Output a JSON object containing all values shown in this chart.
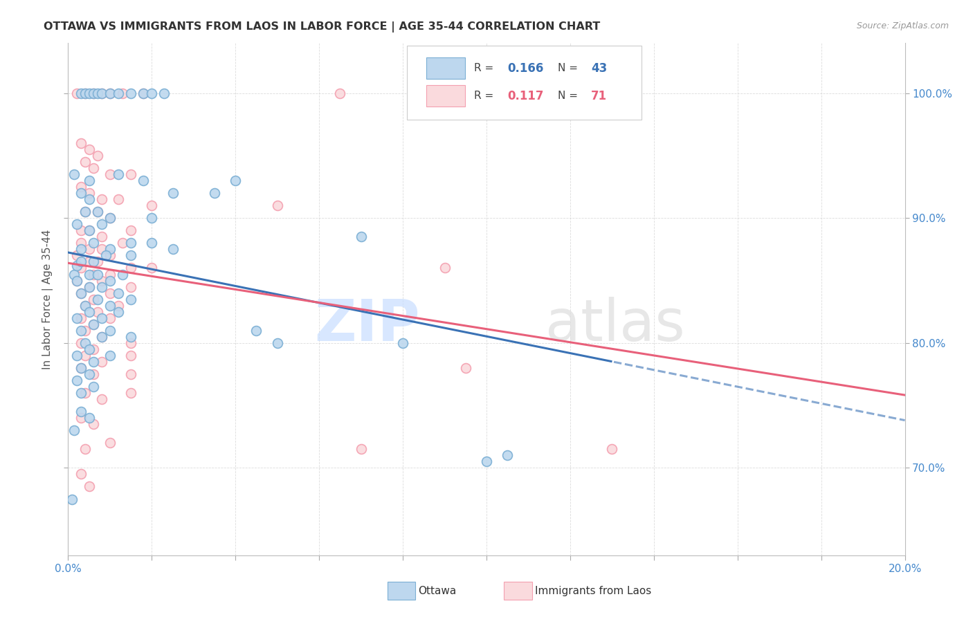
{
  "title": "OTTAWA VS IMMIGRANTS FROM LAOS IN LABOR FORCE | AGE 35-44 CORRELATION CHART",
  "source": "Source: ZipAtlas.com",
  "ylabel": "In Labor Force | Age 35-44",
  "ylabel_ticks": [
    70.0,
    80.0,
    90.0,
    100.0
  ],
  "xmin": 0.0,
  "xmax": 20.0,
  "ymin": 63.0,
  "ymax": 104.0,
  "blue_color": "#7BAFD4",
  "pink_color": "#F4A0B0",
  "blue_fill": "#BDD7EE",
  "pink_fill": "#FADADD",
  "trend_blue": "#3A72B5",
  "trend_pink": "#E8607A",
  "ottawa_points": [
    [
      0.15,
      85.5
    ],
    [
      0.2,
      86.2
    ],
    [
      0.3,
      100.0
    ],
    [
      0.4,
      100.0
    ],
    [
      0.5,
      100.0
    ],
    [
      0.6,
      100.0
    ],
    [
      0.7,
      100.0
    ],
    [
      0.8,
      100.0
    ],
    [
      1.0,
      100.0
    ],
    [
      1.2,
      100.0
    ],
    [
      1.5,
      100.0
    ],
    [
      1.8,
      100.0
    ],
    [
      2.0,
      100.0
    ],
    [
      2.3,
      100.0
    ],
    [
      0.15,
      93.5
    ],
    [
      0.5,
      93.0
    ],
    [
      1.2,
      93.5
    ],
    [
      1.8,
      93.0
    ],
    [
      2.5,
      92.0
    ],
    [
      0.3,
      92.0
    ],
    [
      0.5,
      91.5
    ],
    [
      0.4,
      90.5
    ],
    [
      0.7,
      90.5
    ],
    [
      1.0,
      90.0
    ],
    [
      2.0,
      90.0
    ],
    [
      0.2,
      89.5
    ],
    [
      0.5,
      89.0
    ],
    [
      0.8,
      89.5
    ],
    [
      0.3,
      87.5
    ],
    [
      0.6,
      88.0
    ],
    [
      1.0,
      87.5
    ],
    [
      1.5,
      88.0
    ],
    [
      2.0,
      88.0
    ],
    [
      0.3,
      86.5
    ],
    [
      0.6,
      86.5
    ],
    [
      0.9,
      87.0
    ],
    [
      1.5,
      87.0
    ],
    [
      2.5,
      87.5
    ],
    [
      0.2,
      85.0
    ],
    [
      0.5,
      85.5
    ],
    [
      0.7,
      85.5
    ],
    [
      1.0,
      85.0
    ],
    [
      1.3,
      85.5
    ],
    [
      0.3,
      84.0
    ],
    [
      0.5,
      84.5
    ],
    [
      0.8,
      84.5
    ],
    [
      1.2,
      84.0
    ],
    [
      0.4,
      83.0
    ],
    [
      0.7,
      83.5
    ],
    [
      1.0,
      83.0
    ],
    [
      1.5,
      83.5
    ],
    [
      0.2,
      82.0
    ],
    [
      0.5,
      82.5
    ],
    [
      0.8,
      82.0
    ],
    [
      1.2,
      82.5
    ],
    [
      0.3,
      81.0
    ],
    [
      0.6,
      81.5
    ],
    [
      1.0,
      81.0
    ],
    [
      0.4,
      80.0
    ],
    [
      0.8,
      80.5
    ],
    [
      1.5,
      80.5
    ],
    [
      0.2,
      79.0
    ],
    [
      0.5,
      79.5
    ],
    [
      1.0,
      79.0
    ],
    [
      0.3,
      78.0
    ],
    [
      0.6,
      78.5
    ],
    [
      0.2,
      77.0
    ],
    [
      0.5,
      77.5
    ],
    [
      0.3,
      76.0
    ],
    [
      0.6,
      76.5
    ],
    [
      0.3,
      74.5
    ],
    [
      0.5,
      74.0
    ],
    [
      0.15,
      73.0
    ],
    [
      0.1,
      67.5
    ],
    [
      4.5,
      81.0
    ],
    [
      8.0,
      80.0
    ],
    [
      10.5,
      71.0
    ],
    [
      3.5,
      92.0
    ],
    [
      4.0,
      93.0
    ],
    [
      5.0,
      80.0
    ],
    [
      7.0,
      88.5
    ],
    [
      10.0,
      70.5
    ]
  ],
  "laos_points": [
    [
      0.2,
      100.0
    ],
    [
      0.4,
      100.0
    ],
    [
      0.6,
      100.0
    ],
    [
      0.8,
      100.0
    ],
    [
      1.0,
      100.0
    ],
    [
      1.3,
      100.0
    ],
    [
      1.8,
      100.0
    ],
    [
      6.5,
      100.0
    ],
    [
      0.3,
      96.0
    ],
    [
      0.5,
      95.5
    ],
    [
      0.7,
      95.0
    ],
    [
      0.4,
      94.5
    ],
    [
      0.6,
      94.0
    ],
    [
      1.0,
      93.5
    ],
    [
      1.5,
      93.5
    ],
    [
      0.3,
      92.5
    ],
    [
      0.5,
      92.0
    ],
    [
      0.8,
      91.5
    ],
    [
      1.2,
      91.5
    ],
    [
      0.4,
      90.5
    ],
    [
      0.7,
      90.5
    ],
    [
      1.0,
      90.0
    ],
    [
      2.0,
      91.0
    ],
    [
      0.3,
      89.0
    ],
    [
      0.5,
      89.0
    ],
    [
      0.8,
      88.5
    ],
    [
      1.5,
      89.0
    ],
    [
      0.3,
      88.0
    ],
    [
      0.5,
      87.5
    ],
    [
      0.8,
      87.5
    ],
    [
      1.3,
      88.0
    ],
    [
      0.2,
      87.0
    ],
    [
      0.5,
      86.5
    ],
    [
      0.7,
      86.5
    ],
    [
      1.0,
      87.0
    ],
    [
      2.0,
      86.0
    ],
    [
      0.3,
      86.0
    ],
    [
      0.6,
      85.5
    ],
    [
      1.0,
      85.5
    ],
    [
      1.5,
      86.0
    ],
    [
      0.2,
      85.0
    ],
    [
      0.5,
      84.5
    ],
    [
      0.8,
      85.0
    ],
    [
      1.5,
      84.5
    ],
    [
      0.3,
      84.0
    ],
    [
      0.6,
      83.5
    ],
    [
      1.0,
      84.0
    ],
    [
      0.4,
      83.0
    ],
    [
      0.7,
      82.5
    ],
    [
      1.2,
      83.0
    ],
    [
      0.3,
      82.0
    ],
    [
      0.6,
      81.5
    ],
    [
      1.0,
      82.0
    ],
    [
      0.4,
      81.0
    ],
    [
      0.8,
      80.5
    ],
    [
      0.3,
      80.0
    ],
    [
      0.6,
      79.5
    ],
    [
      1.5,
      80.0
    ],
    [
      0.4,
      79.0
    ],
    [
      0.8,
      78.5
    ],
    [
      1.5,
      79.0
    ],
    [
      0.3,
      78.0
    ],
    [
      0.6,
      77.5
    ],
    [
      1.5,
      77.5
    ],
    [
      0.4,
      76.0
    ],
    [
      0.8,
      75.5
    ],
    [
      1.5,
      76.0
    ],
    [
      0.3,
      74.0
    ],
    [
      0.6,
      73.5
    ],
    [
      0.4,
      71.5
    ],
    [
      1.0,
      72.0
    ],
    [
      0.3,
      69.5
    ],
    [
      0.5,
      68.5
    ],
    [
      5.0,
      91.0
    ],
    [
      7.0,
      71.5
    ],
    [
      9.0,
      86.0
    ],
    [
      9.5,
      78.0
    ],
    [
      13.0,
      71.5
    ]
  ]
}
